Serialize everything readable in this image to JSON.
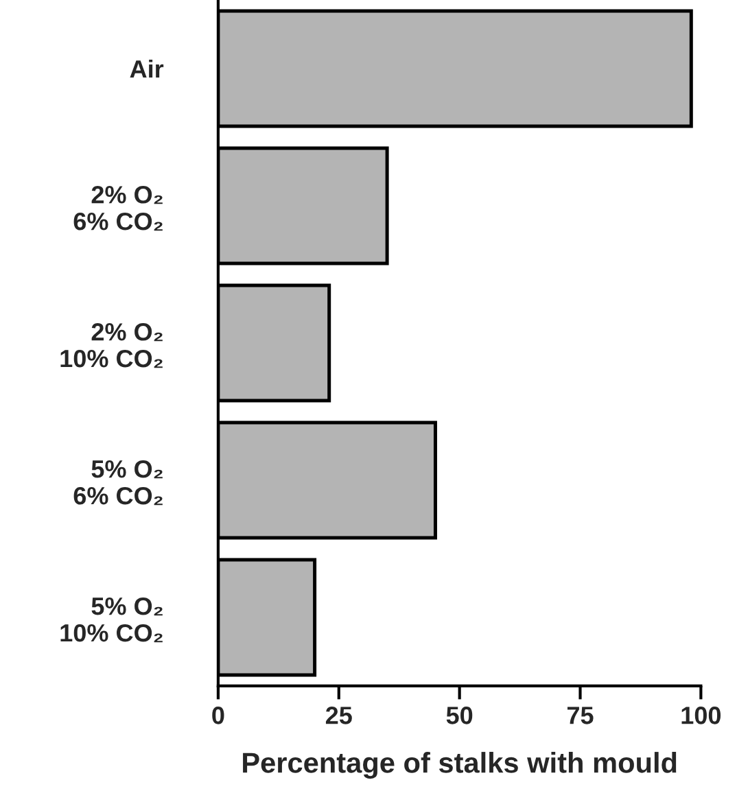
{
  "chart_data": {
    "type": "bar",
    "orientation": "horizontal",
    "xlabel": "Percentage of stalks with mould",
    "categories": [
      "Air",
      "2% O₂\n6% CO₂",
      "2% O₂\n10% CO₂",
      "5% O₂\n6% CO₂",
      "5% O₂\n10% CO₂"
    ],
    "values": [
      98,
      35,
      23,
      45,
      20
    ],
    "color": "#b4b4b4",
    "xlim": [
      0,
      100
    ],
    "xticks": [
      0,
      25,
      50,
      75,
      100
    ],
    "grid": false,
    "legend": false
  }
}
